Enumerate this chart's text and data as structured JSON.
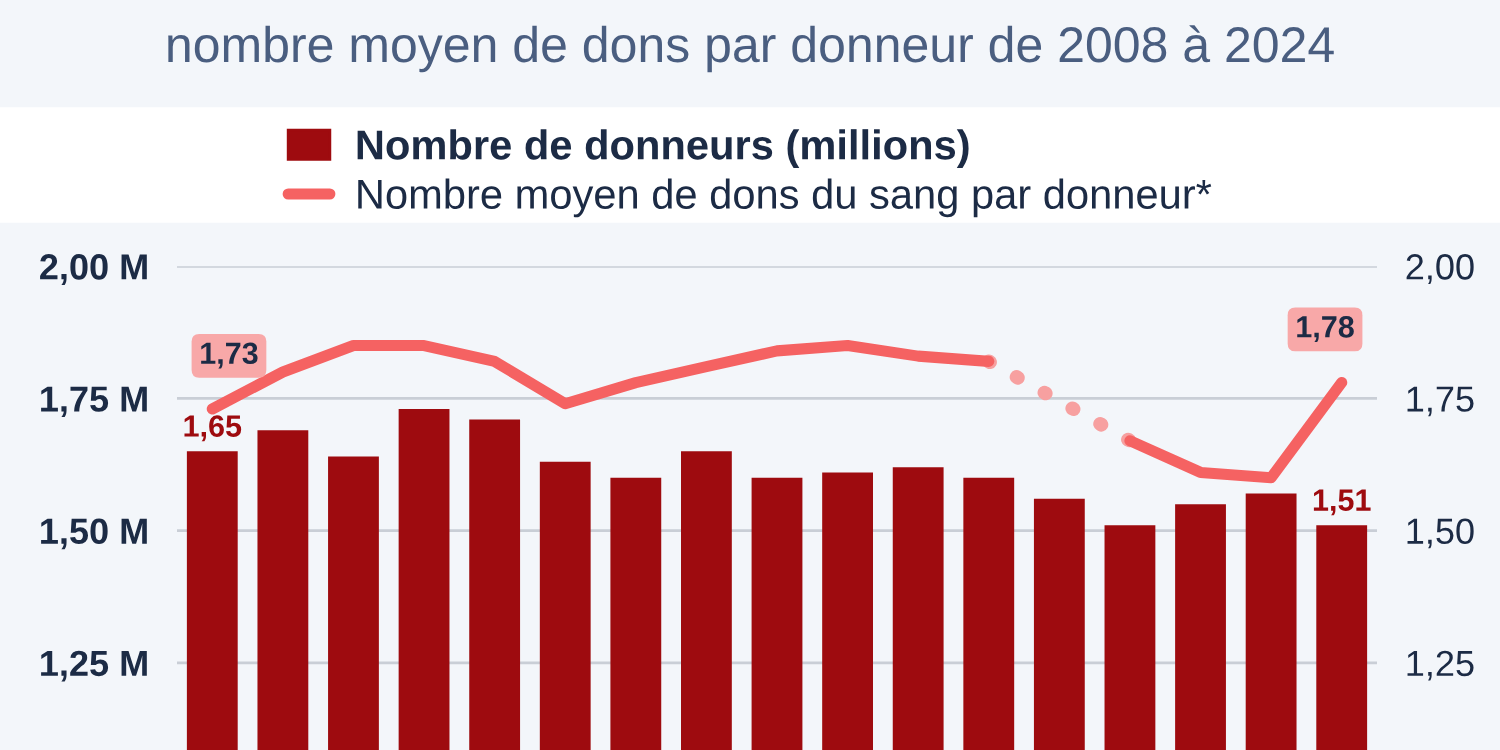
{
  "chart_data": {
    "type": "bar",
    "title": "nombre moyen de dons par donneur de 2008 à 2024",
    "categories": [
      null,
      null,
      null,
      null,
      null,
      null,
      null,
      null,
      null,
      null,
      null,
      null,
      null,
      null,
      null,
      null,
      null
    ],
    "series": [
      {
        "name": "Nombre de donneurs (millions)",
        "color": "#9e0b0f",
        "values": [
          1.65,
          1.69,
          1.64,
          1.73,
          1.71,
          1.63,
          1.6,
          1.65,
          1.6,
          1.61,
          1.62,
          1.6,
          1.56,
          1.51,
          1.55,
          1.57,
          1.51
        ],
        "value_labels": [
          "1,65",
          null,
          null,
          null,
          null,
          null,
          null,
          null,
          null,
          null,
          null,
          null,
          null,
          null,
          null,
          null,
          "1,51"
        ]
      },
      {
        "name": "Nombre moyen de dons du sang par donneur*",
        "type": "line",
        "color": "#f56262",
        "line_style": "solid",
        "values": [
          1.73,
          1.8,
          1.85,
          1.85,
          1.82,
          1.74,
          1.78,
          1.81,
          1.84,
          1.85,
          1.83,
          1.82,
          null,
          null,
          null,
          null,
          null
        ],
        "value_labels": [
          "1,73",
          null,
          null,
          null,
          null,
          null,
          null,
          null,
          null,
          null,
          null,
          null,
          null,
          null,
          null,
          null,
          null
        ]
      },
      {
        "type": "line",
        "color": "#f56262",
        "line_style": "solid",
        "values": [
          null,
          null,
          null,
          null,
          null,
          null,
          null,
          null,
          null,
          null,
          null,
          null,
          null,
          1.67,
          1.61,
          1.6,
          1.78
        ],
        "value_labels": [
          null,
          null,
          null,
          null,
          null,
          null,
          null,
          null,
          null,
          null,
          null,
          null,
          null,
          null,
          null,
          null,
          "1,78"
        ]
      },
      {
        "type": "line",
        "color": "#f7a0a0",
        "line_style": "dotted",
        "values": [
          null,
          null,
          null,
          null,
          null,
          null,
          null,
          null,
          null,
          null,
          null,
          1.82,
          null,
          1.67,
          null,
          null,
          null
        ]
      }
    ],
    "ylim": [
      1.085,
      2.0
    ],
    "yticks": [
      {
        "value": 1.25,
        "label": "1,25 M"
      },
      {
        "value": 1.5,
        "label": "1,50 M"
      },
      {
        "value": 1.75,
        "label": "1,75 M"
      },
      {
        "value": 2.0,
        "label": "2,00 M"
      }
    ],
    "y2lim": [
      1.085,
      2.0
    ],
    "y2ticks": [
      {
        "value": 1.25,
        "label": "1,25"
      },
      {
        "value": 1.5,
        "label": "1,50"
      },
      {
        "value": 1.75,
        "label": "1,75"
      },
      {
        "value": 2.0,
        "label": "2,00"
      }
    ],
    "grid": "y",
    "legend": "top"
  }
}
